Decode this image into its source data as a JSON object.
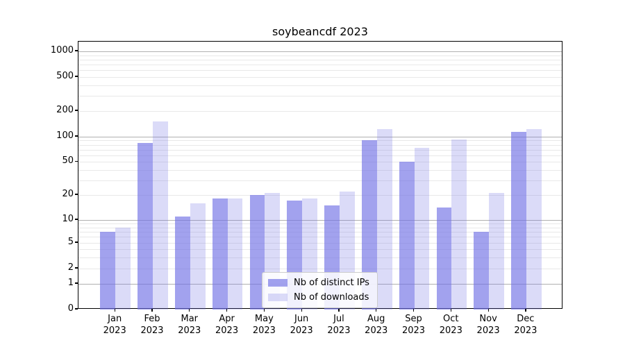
{
  "chart_data": {
    "type": "bar",
    "title": "soybeancdf 2023",
    "categories": [
      "Jan 2023",
      "Feb 2023",
      "Mar 2023",
      "Apr 2023",
      "May 2023",
      "Jun 2023",
      "Jul 2023",
      "Aug 2023",
      "Sep 2023",
      "Oct 2023",
      "Nov 2023",
      "Dec 2023"
    ],
    "series": [
      {
        "name": "Nb of distinct IPs",
        "color": "rgba(112,112,229,0.65)",
        "values": [
          7,
          84,
          11,
          18,
          20,
          17,
          15,
          90,
          50,
          14,
          7,
          115
        ]
      },
      {
        "name": "Nb of downloads",
        "color": "rgba(112,112,229,0.25)",
        "values": [
          8,
          150,
          16,
          18,
          21,
          18,
          22,
          122,
          74,
          93,
          21,
          122
        ]
      }
    ],
    "xlabel": "",
    "ylabel": "",
    "yscale": "symlog",
    "ylim": [
      0,
      1300
    ],
    "yticks": [
      0,
      1,
      2,
      5,
      10,
      20,
      50,
      100,
      200,
      500,
      1000
    ],
    "major_gridlines": [
      1,
      10,
      100,
      1000
    ],
    "minor_gridlines": [
      3,
      4,
      6,
      7,
      8,
      9,
      30,
      40,
      60,
      70,
      80,
      90,
      300,
      400,
      600,
      700,
      800,
      900
    ],
    "grid": "horizontal",
    "legend_position": "lower center"
  },
  "colors": {
    "major_grid": "#b0b0b0",
    "minor_grid": "#e8e8e8",
    "axis": "#000000",
    "background": "#ffffff",
    "bar_base": "#7070e5"
  }
}
